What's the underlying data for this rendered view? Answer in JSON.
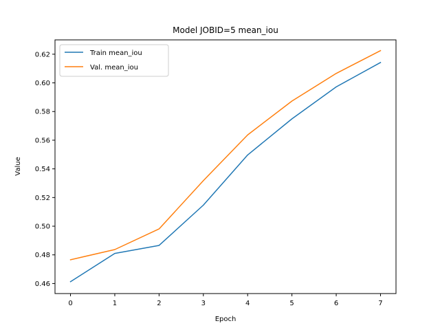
{
  "chart_data": {
    "type": "line",
    "title": "Model JOBID=5 mean_iou",
    "xlabel": "Epoch",
    "ylabel": "Value",
    "x": [
      0,
      1,
      2,
      3,
      4,
      5,
      6,
      7
    ],
    "xticks": [
      "0",
      "1",
      "2",
      "3",
      "4",
      "5",
      "6",
      "7"
    ],
    "yticks": [
      "0.46",
      "0.48",
      "0.50",
      "0.52",
      "0.54",
      "0.56",
      "0.58",
      "0.60",
      "0.62"
    ],
    "xlim": [
      -0.35,
      7.35
    ],
    "ylim": [
      0.453,
      0.63
    ],
    "grid": false,
    "legend_position": "top-left",
    "series": [
      {
        "name": "Train mean_iou",
        "color": "#1f77b4",
        "values": [
          0.4613,
          0.481,
          0.4866,
          0.5147,
          0.5497,
          0.5749,
          0.5972,
          0.6142
        ]
      },
      {
        "name": "Val. mean_iou",
        "color": "#ff7f0e",
        "values": [
          0.4766,
          0.4837,
          0.4981,
          0.5318,
          0.5637,
          0.5873,
          0.6066,
          0.6225
        ]
      }
    ]
  }
}
